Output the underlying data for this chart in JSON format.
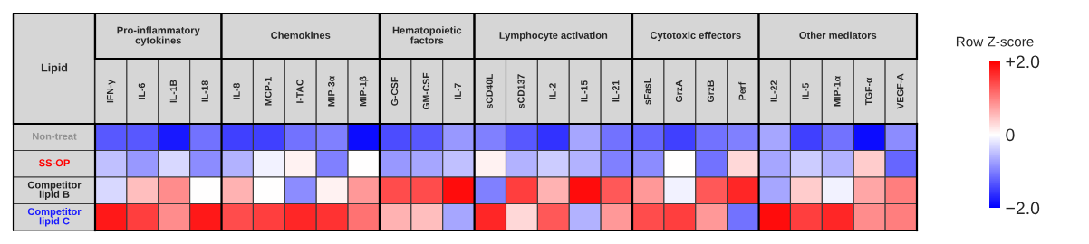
{
  "chart_data": {
    "type": "heatmap",
    "ylabel": "Lipid",
    "clabel": "Row Z-score",
    "annotations": [
      "Pro-inflammatory cytokines",
      "Chemokines",
      "Hematopoietic factors",
      "Lymphocyte activation",
      "Cytotoxic effectors",
      "Other mediators"
    ],
    "categories": [
      "IFN-γ",
      "IL-6",
      "IL-1B",
      "IL-18",
      "IL-8",
      "MCP-1",
      "I-TAC",
      "MIP-3α",
      "MIP-1β",
      "G-CSF",
      "GM-CSF",
      "IL-7",
      "sCD40L",
      "sCD137",
      "IL-2",
      "IL-15",
      "IL-21",
      "sFasL",
      "GrzA",
      "GrzB",
      "Perf",
      "IL-22",
      "IL-5",
      "MIP-1α",
      "TGF-α",
      "VEGF-A"
    ],
    "y_categories": [
      "Non-treat",
      "SS-OP",
      "Competitor lipid B",
      "Competitor lipid C"
    ],
    "cells": [
      [
        -1.3,
        -1.3,
        -1.8,
        -1.1,
        -1.5,
        -1.5,
        -1.1,
        -1.0,
        -1.9,
        -1.4,
        -1.3,
        -0.8,
        -1.0,
        -1.3,
        -1.6,
        -0.7,
        -1.1,
        -1.2,
        -1.5,
        -1.1,
        -1.0,
        -0.7,
        -1.5,
        -1.1,
        -1.9,
        -0.9
      ],
      [
        -0.5,
        -0.8,
        -0.3,
        -0.9,
        -0.6,
        -0.1,
        0.1,
        -1.0,
        0.0,
        -0.8,
        -0.7,
        -0.5,
        0.1,
        -0.6,
        -0.4,
        -0.6,
        -1.0,
        -0.9,
        0.0,
        -1.1,
        0.3,
        -0.7,
        -0.4,
        -0.6,
        0.4,
        -1.2
      ],
      [
        -0.3,
        0.5,
        0.9,
        0.0,
        0.6,
        0.0,
        -0.9,
        0.1,
        0.8,
        1.4,
        1.4,
        1.9,
        -1.0,
        1.5,
        0.6,
        1.9,
        1.3,
        0.8,
        -0.1,
        1.3,
        1.7,
        -0.7,
        0.4,
        -0.1,
        0.7,
        1.0
      ],
      [
        1.8,
        1.5,
        0.9,
        1.8,
        1.4,
        1.5,
        1.7,
        1.6,
        1.1,
        0.6,
        0.5,
        -0.7,
        1.7,
        0.3,
        1.3,
        -0.6,
        0.8,
        1.4,
        1.5,
        0.8,
        -1.1,
        1.9,
        1.5,
        1.7,
        0.9,
        1.0
      ]
    ],
    "clim": [
      -2.0,
      2.0
    ],
    "cticks": [
      {
        "value": 2.0,
        "label": "+2.0"
      },
      0,
      {
        "value": -2.0,
        "label": "−2.0"
      }
    ]
  }
}
